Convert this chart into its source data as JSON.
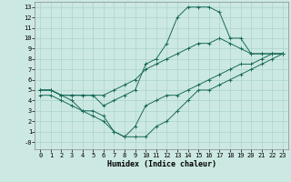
{
  "xlabel": "Humidex (Indice chaleur)",
  "bg_color": "#cce8e2",
  "grid_color": "#aad4cc",
  "line_color": "#1a6b5a",
  "xlim_min": -0.5,
  "xlim_max": 23.5,
  "ylim_min": -0.7,
  "ylim_max": 13.5,
  "xticks": [
    0,
    1,
    2,
    3,
    4,
    5,
    6,
    7,
    8,
    9,
    10,
    11,
    12,
    13,
    14,
    15,
    16,
    17,
    18,
    19,
    20,
    21,
    22,
    23
  ],
  "yticks": [
    0,
    1,
    2,
    3,
    4,
    5,
    6,
    7,
    8,
    9,
    10,
    11,
    12,
    13
  ],
  "ytick_labels": [
    "-0",
    "1",
    "2",
    "3",
    "4",
    "5",
    "6",
    "7",
    "8",
    "9",
    "10",
    "11",
    "12",
    "13"
  ],
  "line1_x": [
    0,
    1,
    2,
    3,
    4,
    5,
    6,
    7,
    8,
    9,
    10,
    11,
    12,
    13,
    14,
    15,
    16,
    17,
    18,
    19,
    20,
    21,
    22,
    23
  ],
  "line1_y": [
    5.0,
    5.0,
    4.5,
    4.5,
    4.5,
    4.5,
    4.5,
    5.0,
    5.5,
    6.0,
    7.0,
    7.5,
    8.0,
    8.5,
    9.0,
    9.5,
    9.5,
    10.0,
    9.5,
    9.0,
    8.5,
    8.5,
    8.5,
    8.5
  ],
  "line2_x": [
    0,
    1,
    2,
    3,
    4,
    5,
    6,
    7,
    8,
    9,
    10,
    11,
    12,
    13,
    14,
    15,
    16,
    17,
    18,
    19,
    20,
    21,
    22,
    23
  ],
  "line2_y": [
    5.0,
    5.0,
    4.5,
    4.5,
    4.5,
    4.5,
    3.5,
    4.0,
    4.5,
    5.0,
    7.5,
    8.0,
    9.5,
    12.0,
    13.0,
    13.0,
    13.0,
    12.5,
    10.0,
    10.0,
    8.5,
    8.5,
    8.5,
    8.5
  ],
  "line3_x": [
    0,
    1,
    2,
    3,
    4,
    5,
    6,
    7,
    8,
    9,
    10,
    11,
    12,
    13,
    14,
    15,
    16,
    17,
    18,
    19,
    20,
    21,
    22,
    23
  ],
  "line3_y": [
    5.0,
    5.0,
    4.5,
    4.0,
    3.0,
    3.0,
    2.5,
    1.0,
    0.5,
    1.5,
    3.5,
    4.0,
    4.5,
    4.5,
    5.0,
    5.5,
    6.0,
    6.5,
    7.0,
    7.5,
    7.5,
    8.0,
    8.5,
    8.5
  ],
  "line4_x": [
    0,
    1,
    2,
    3,
    4,
    5,
    6,
    7,
    8,
    9,
    10,
    11,
    12,
    13,
    14,
    15,
    16,
    17,
    18,
    19,
    20,
    21,
    22,
    23
  ],
  "line4_y": [
    4.5,
    4.5,
    4.0,
    3.5,
    3.0,
    2.5,
    2.0,
    1.0,
    0.5,
    0.5,
    0.5,
    1.5,
    2.0,
    3.0,
    4.0,
    5.0,
    5.0,
    5.5,
    6.0,
    6.5,
    7.0,
    7.5,
    8.0,
    8.5
  ],
  "label_fontsize": 5.0,
  "xlabel_fontsize": 6.0
}
